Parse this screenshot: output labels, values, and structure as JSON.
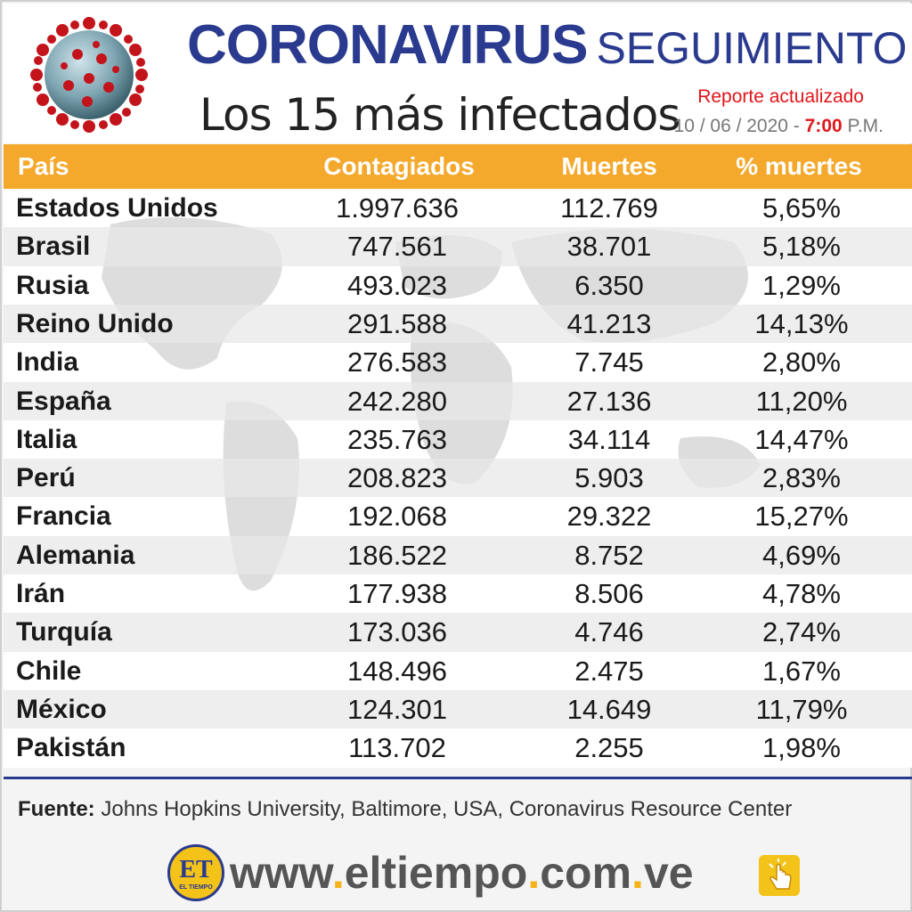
{
  "header": {
    "title_word1": "Coronavirus",
    "title_word2": "Seguimiento",
    "subtitle": "Los 15 más infectados",
    "report_label": "Reporte actualizado",
    "date": "10 / 06 / 2020 -",
    "time": "7:00",
    "period": "P.M."
  },
  "table": {
    "headers": {
      "country": "País",
      "cases": "Contagiados",
      "deaths": "Muertes",
      "pct": "% muertes"
    },
    "rows": [
      {
        "country": "Estados Unidos",
        "cases": "1.997.636",
        "deaths": "112.769",
        "pct": "5,65%"
      },
      {
        "country": "Brasil",
        "cases": "747.561",
        "deaths": "38.701",
        "pct": "5,18%"
      },
      {
        "country": "Rusia",
        "cases": "493.023",
        "deaths": "6.350",
        "pct": "1,29%"
      },
      {
        "country": "Reino Unido",
        "cases": "291.588",
        "deaths": "41.213",
        "pct": "14,13%"
      },
      {
        "country": "India",
        "cases": "276.583",
        "deaths": "7.745",
        "pct": "2,80%"
      },
      {
        "country": "España",
        "cases": "242.280",
        "deaths": "27.136",
        "pct": "11,20%"
      },
      {
        "country": "Italia",
        "cases": "235.763",
        "deaths": "34.114",
        "pct": "14,47%"
      },
      {
        "country": "Perú",
        "cases": "208.823",
        "deaths": "5.903",
        "pct": "2,83%"
      },
      {
        "country": "Francia",
        "cases": "192.068",
        "deaths": "29.322",
        "pct": "15,27%"
      },
      {
        "country": "Alemania",
        "cases": "186.522",
        "deaths": "8.752",
        "pct": "4,69%"
      },
      {
        "country": "Irán",
        "cases": "177.938",
        "deaths": "8.506",
        "pct": "4,78%"
      },
      {
        "country": "Turquía",
        "cases": "173.036",
        "deaths": "4.746",
        "pct": "2,74%"
      },
      {
        "country": "Chile",
        "cases": "148.496",
        "deaths": "2.475",
        "pct": "1,67%"
      },
      {
        "country": "México",
        "cases": "124.301",
        "deaths": "14.649",
        "pct": "11,79%"
      },
      {
        "country": "Pakistán",
        "cases": "113.702",
        "deaths": "2.255",
        "pct": "1,98%"
      }
    ]
  },
  "source": {
    "label": "Fuente:",
    "text": "Johns Hopkins University, Baltimore, USA, Coronavirus Resource Center"
  },
  "footer": {
    "logo_text": "ET",
    "logo_small": "EL TIEMPO",
    "url_part1": "www",
    "url_part2": "eltiempo",
    "url_part3": "com",
    "url_part4": "ve",
    "dot": "."
  },
  "colors": {
    "header_bar": "#f4a92c",
    "title_blue": "#2a3a8e",
    "accent_red": "#e0161b",
    "url_dot": "#f4b21b"
  },
  "icons": [
    "coronavirus-icon",
    "world-map-watermark",
    "et-logo",
    "hand-click-icon"
  ]
}
